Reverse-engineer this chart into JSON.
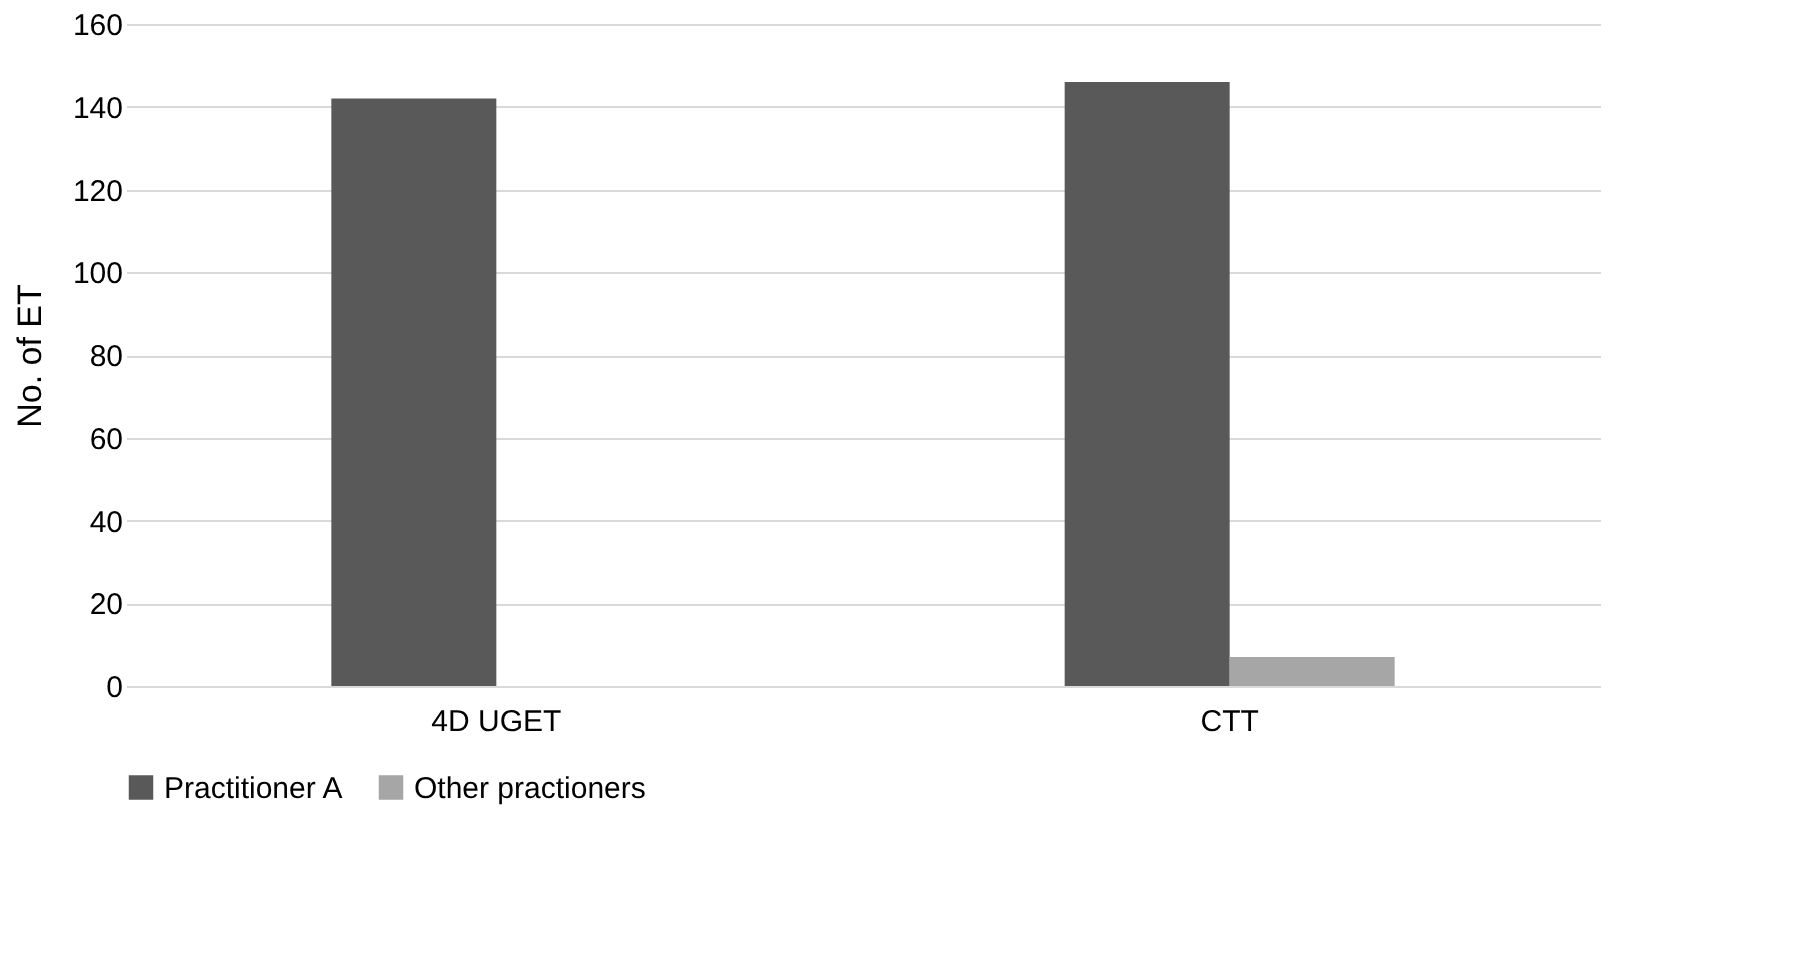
{
  "chart_data": {
    "type": "bar",
    "ylabel": "No. of ET",
    "categories": [
      "4D UGET",
      "CTT"
    ],
    "series": [
      {
        "name": "Practitioner A",
        "color": "#595959",
        "values": [
          142,
          146
        ]
      },
      {
        "name": "Other practioners",
        "color": "#a6a6a6",
        "values": [
          0,
          7
        ]
      }
    ],
    "ylim": [
      0,
      160
    ],
    "yticks": [
      0,
      20,
      40,
      60,
      80,
      100,
      120,
      140,
      160
    ],
    "grid": "y",
    "legend": "bottom"
  }
}
